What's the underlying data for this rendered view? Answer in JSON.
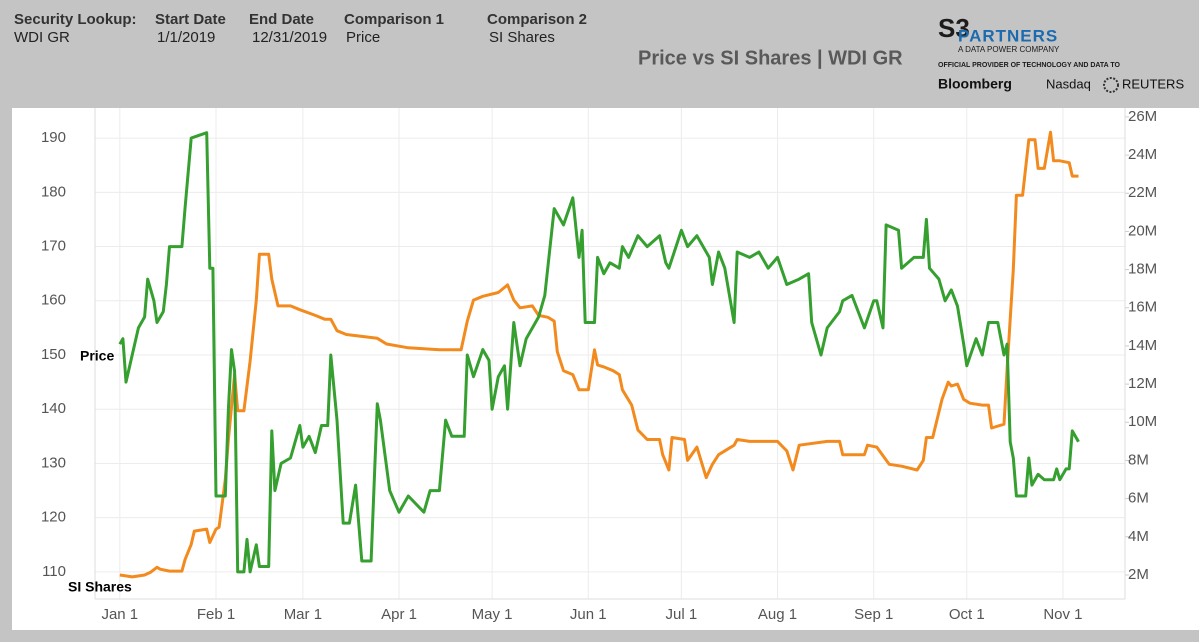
{
  "header": {
    "security_label": "Security Lookup:",
    "security": "WDI GR",
    "start_label": "Start Date",
    "start": "1/1/2019",
    "end_label": "End Date",
    "end": "12/31/2019",
    "comp1_label": "Comparison 1",
    "comp1": "Price",
    "comp2_label": "Comparison 2",
    "comp2": "SI Shares"
  },
  "logo": {
    "mark": "S3",
    "name": "PARTNERS",
    "tagline": "A DATA POWER COMPANY",
    "provider": "OFFICIAL PROVIDER OF TECHNOLOGY AND DATA TO",
    "partners": [
      "Bloomberg",
      "Nasdaq",
      "REUTERS"
    ]
  },
  "chart_data": {
    "type": "line",
    "title": "Price vs SI Shares | WDI GR",
    "grid": true,
    "xlim": [
      "Dec 24",
      "Nov 21"
    ],
    "xticks": [
      "Jan 1",
      "Feb 1",
      "Mar 1",
      "Apr 1",
      "May 1",
      "Jun 1",
      "Jul 1",
      "Aug 1",
      "Sep 1",
      "Oct 1",
      "Nov 1"
    ],
    "ylim": [
      105,
      195
    ],
    "yticks": [
      110,
      120,
      130,
      140,
      150,
      160,
      170,
      180,
      190
    ],
    "y2lim": [
      740000,
      26310000
    ],
    "y2ticks": [
      {
        "value": 2000000,
        "label": "2M"
      },
      {
        "value": 4000000,
        "label": "4M"
      },
      {
        "value": 6000000,
        "label": "6M"
      },
      {
        "value": 8000000,
        "label": "8M"
      },
      {
        "value": 10000000,
        "label": "10M"
      },
      {
        "value": 12000000,
        "label": "12M"
      },
      {
        "value": 14000000,
        "label": "14M"
      },
      {
        "value": 16000000,
        "label": "16M"
      },
      {
        "value": 18000000,
        "label": "18M"
      },
      {
        "value": 20000000,
        "label": "20M"
      },
      {
        "value": 22000000,
        "label": "22M"
      },
      {
        "value": 24000000,
        "label": "24M"
      },
      {
        "value": 26000000,
        "label": "26M"
      }
    ],
    "series": [
      {
        "name": "Price",
        "color": "#35a02f",
        "x": [
          "Jan 1",
          "Jan 2",
          "Jan 3",
          "Jan 5",
          "Jan 7",
          "Jan 9",
          "Jan 10",
          "Jan 12",
          "Jan 13",
          "Jan 15",
          "Jan 16",
          "Jan 17",
          "Jan 21",
          "Jan 22",
          "Jan 24",
          "Jan 29",
          "Jan 30",
          "Jan 31",
          "Feb 1",
          "Feb 4",
          "Feb 5",
          "Feb 6",
          "Feb 7",
          "Feb 8",
          "Feb 10",
          "Feb 11",
          "Feb 12",
          "Feb 14",
          "Feb 15",
          "Feb 18",
          "Feb 19",
          "Feb 20",
          "Feb 22",
          "Feb 25",
          "Feb 26",
          "Feb 28",
          "Mar 1",
          "Mar 3",
          "Mar 5",
          "Mar 7",
          "Mar 9",
          "Mar 10",
          "Mar 12",
          "Mar 14",
          "Mar 16",
          "Mar 18",
          "Mar 20",
          "Mar 23",
          "Mar 25",
          "Mar 26",
          "Mar 29",
          "Apr 1",
          "Apr 4",
          "Apr 9",
          "Apr 11",
          "Apr 14",
          "Apr 16",
          "Apr 18",
          "Apr 22",
          "Apr 23",
          "Apr 25",
          "Apr 28",
          "Apr 30",
          "May 1",
          "May 3",
          "May 5",
          "May 6",
          "May 8",
          "May 10",
          "May 12",
          "May 16",
          "May 18",
          "May 21",
          "May 24",
          "May 27",
          "May 29",
          "May 30",
          "May 31",
          "Jun 3",
          "Jun 4",
          "Jun 6",
          "Jun 8",
          "Jun 11",
          "Jun 12",
          "Jun 14",
          "Jun 17",
          "Jun 20",
          "Jun 24",
          "Jun 26",
          "Jun 27",
          "Jul 1",
          "Jul 3",
          "Jul 6",
          "Jul 10",
          "Jul 11",
          "Jul 13",
          "Jul 15",
          "Jul 18",
          "Jul 19",
          "Jul 23",
          "Jul 26",
          "Jul 29",
          "Aug 1",
          "Aug 4",
          "Aug 8",
          "Aug 11",
          "Aug 12",
          "Aug 15",
          "Aug 17",
          "Aug 21",
          "Aug 22",
          "Aug 25",
          "Aug 27",
          "Aug 29",
          "Sep 1",
          "Sep 2",
          "Sep 4",
          "Sep 5",
          "Sep 9",
          "Sep 10",
          "Sep 14",
          "Sep 17",
          "Sep 18",
          "Sep 19",
          "Sep 22",
          "Sep 24",
          "Sep 26",
          "Sep 28",
          "Sep 30",
          "Oct 1",
          "Oct 4",
          "Oct 6",
          "Oct 8",
          "Oct 11",
          "Oct 13",
          "Oct 14",
          "Oct 15",
          "Oct 16",
          "Oct 17",
          "Oct 20",
          "Oct 21",
          "Oct 22",
          "Oct 24",
          "Oct 26",
          "Oct 29",
          "Oct 30",
          "Oct 31",
          "Nov 2",
          "Nov 3",
          "Nov 4",
          "Nov 6"
        ],
        "values": [
          152,
          153,
          145,
          150,
          155,
          157,
          164,
          160,
          156,
          158,
          163,
          170,
          170,
          177,
          190,
          191,
          166,
          166,
          124,
          124,
          140,
          151,
          147,
          110,
          110,
          116,
          110,
          115,
          111,
          111,
          136,
          125,
          130,
          131,
          133,
          137,
          133,
          135,
          132,
          137,
          137,
          150,
          138,
          119,
          119,
          126,
          112,
          112,
          141,
          138,
          125,
          121,
          124,
          121,
          125,
          125,
          138,
          135,
          135,
          150,
          146,
          151,
          149,
          140,
          146,
          148,
          140,
          156,
          148,
          153,
          157,
          161,
          177,
          174,
          179,
          168,
          173,
          156,
          156,
          168,
          165,
          167,
          166,
          170,
          168,
          172,
          170,
          172,
          167,
          166,
          173,
          170,
          172,
          168,
          163,
          169,
          166,
          156,
          169,
          168,
          169,
          166,
          168,
          163,
          164,
          165,
          156,
          150,
          155,
          158,
          160,
          161,
          158,
          155,
          160,
          160,
          155,
          174,
          173,
          166,
          168,
          168,
          175,
          166,
          164,
          160,
          162,
          159,
          152,
          148,
          153,
          150,
          156,
          156,
          150,
          152,
          134,
          131,
          124,
          124,
          131,
          126,
          128,
          127,
          127,
          129,
          127,
          129,
          129,
          136,
          134
        ]
      },
      {
        "name": "SI Shares",
        "color": "#f28a1e",
        "axis": "y2",
        "x": [
          "Jan 1",
          "Jan 3",
          "Jan 5",
          "Jan 9",
          "Jan 11",
          "Jan 13",
          "Jan 14",
          "Jan 17",
          "Jan 21",
          "Jan 22",
          "Jan 24",
          "Jan 25",
          "Jan 29",
          "Jan 30",
          "Feb 1",
          "Feb 2",
          "Feb 4",
          "Feb 5",
          "Feb 6",
          "Feb 7",
          "Feb 8",
          "Feb 10",
          "Feb 12",
          "Feb 14",
          "Feb 15",
          "Feb 18",
          "Feb 19",
          "Feb 21",
          "Feb 25",
          "Feb 28",
          "Mar 5",
          "Mar 8",
          "Mar 10",
          "Mar 12",
          "Mar 15",
          "Mar 25",
          "Mar 28",
          "Apr 4",
          "Apr 14",
          "Apr 21",
          "Apr 23",
          "Apr 25",
          "Apr 28",
          "May 3",
          "May 6",
          "May 8",
          "May 10",
          "May 14",
          "May 16",
          "May 19",
          "May 21",
          "May 22",
          "May 24",
          "May 27",
          "May 29",
          "Jun 1",
          "Jun 3",
          "Jun 4",
          "Jun 6",
          "Jun 9",
          "Jun 11",
          "Jun 12",
          "Jun 15",
          "Jun 17",
          "Jun 20",
          "Jun 24",
          "Jun 25",
          "Jun 27",
          "Jun 28",
          "Jul 2",
          "Jul 3",
          "Jul 6",
          "Jul 9",
          "Jul 11",
          "Jul 13",
          "Jul 18",
          "Jul 19",
          "Jul 23",
          "Aug 1",
          "Aug 4",
          "Aug 6",
          "Aug 8",
          "Aug 17",
          "Aug 21",
          "Aug 22",
          "Aug 29",
          "Aug 30",
          "Sep 2",
          "Sep 6",
          "Sep 10",
          "Sep 15",
          "Sep 17",
          "Sep 18",
          "Sep 20",
          "Sep 23",
          "Sep 25",
          "Sep 26",
          "Sep 28",
          "Sep 30",
          "Oct 2",
          "Oct 6",
          "Oct 8",
          "Oct 9",
          "Oct 13",
          "Oct 14",
          "Oct 16",
          "Oct 17",
          "Oct 19",
          "Oct 21",
          "Oct 23",
          "Oct 24",
          "Oct 26",
          "Oct 28",
          "Oct 29",
          "Oct 31",
          "Nov 3",
          "Nov 4",
          "Nov 6"
        ],
        "values": [
          2000000,
          1950000,
          1900000,
          2000000,
          2150000,
          2400000,
          2300000,
          2200000,
          2200000,
          2800000,
          3600000,
          4300000,
          4400000,
          3700000,
          4400000,
          4500000,
          7000000,
          9100000,
          10800000,
          12500000,
          10600000,
          10600000,
          13200000,
          16400000,
          18800000,
          18800000,
          17500000,
          16100000,
          16100000,
          15900000,
          15600000,
          15400000,
          15400000,
          14800000,
          14600000,
          14400000,
          14100000,
          13900000,
          13800000,
          13800000,
          15300000,
          16400000,
          16600000,
          16800000,
          17200000,
          16400000,
          16000000,
          16100000,
          15600000,
          15500000,
          15300000,
          13700000,
          12700000,
          12500000,
          11700000,
          11700000,
          13800000,
          13000000,
          12900000,
          12700000,
          12500000,
          11700000,
          10900000,
          9600000,
          9100000,
          9100000,
          8300000,
          7500000,
          9200000,
          9100000,
          8000000,
          8700000,
          7100000,
          7800000,
          8300000,
          8800000,
          9100000,
          9000000,
          9000000,
          8500000,
          7500000,
          8800000,
          9000000,
          9000000,
          8300000,
          8300000,
          8800000,
          8700000,
          7800000,
          7700000,
          7500000,
          8000000,
          9200000,
          9200000,
          11200000,
          12100000,
          11900000,
          12000000,
          11200000,
          11000000,
          10900000,
          10900000,
          9700000,
          9900000,
          12800000,
          18000000,
          21900000,
          21900000,
          24800000,
          24800000,
          23300000,
          23300000,
          25200000,
          23700000,
          23700000,
          23600000,
          22900000,
          22900000
        ]
      }
    ]
  }
}
